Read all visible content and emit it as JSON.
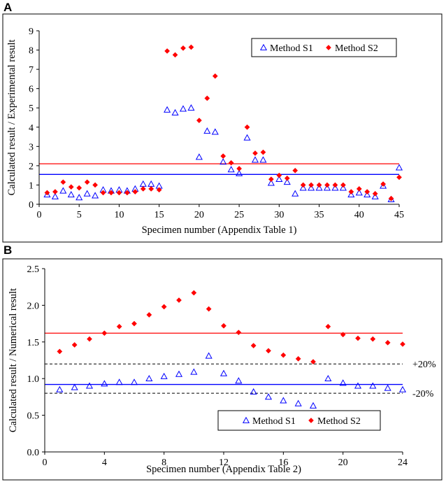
{
  "chart_data": [
    {
      "type": "scatter",
      "panel_label": "A",
      "xlabel": "Specimen number (Appendix Table 1)",
      "ylabel": "Calculated result / Experimental result",
      "xlim": [
        0,
        45
      ],
      "ylim": [
        0,
        9
      ],
      "xticks": [
        0,
        5,
        10,
        15,
        20,
        25,
        30,
        35,
        40,
        45
      ],
      "yticks": [
        0,
        1,
        2,
        3,
        4,
        5,
        6,
        7,
        8,
        9
      ],
      "legend_position": "top-right",
      "series": [
        {
          "name": "Method S1",
          "marker": "triangle-open",
          "color": "#0000ff",
          "x": [
            1,
            2,
            3,
            4,
            5,
            6,
            7,
            8,
            9,
            10,
            11,
            12,
            13,
            14,
            15,
            16,
            17,
            18,
            19,
            20,
            21,
            22,
            23,
            24,
            25,
            26,
            27,
            28,
            29,
            30,
            31,
            32,
            33,
            34,
            35,
            36,
            37,
            38,
            39,
            40,
            41,
            42,
            43,
            44,
            45
          ],
          "y": [
            0.5,
            0.4,
            0.7,
            0.5,
            0.35,
            0.55,
            0.45,
            0.75,
            0.7,
            0.75,
            0.7,
            0.8,
            1.05,
            1.05,
            0.95,
            4.9,
            4.75,
            4.95,
            5.0,
            2.45,
            3.8,
            3.75,
            2.2,
            1.8,
            1.6,
            3.45,
            2.3,
            2.3,
            1.1,
            1.3,
            1.15,
            0.55,
            0.85,
            0.85,
            0.85,
            0.85,
            0.85,
            0.85,
            0.5,
            0.6,
            0.5,
            0.4,
            0.95,
            0.25,
            1.9
          ],
          "mean_line": 1.55,
          "mean_line_color": "#0000ff"
        },
        {
          "name": "Method S2",
          "marker": "diamond-filled",
          "color": "#ff0000",
          "x": [
            1,
            2,
            3,
            4,
            5,
            6,
            7,
            8,
            9,
            10,
            11,
            12,
            13,
            14,
            15,
            16,
            17,
            18,
            19,
            20,
            21,
            22,
            23,
            24,
            25,
            26,
            27,
            28,
            29,
            30,
            31,
            32,
            33,
            34,
            35,
            36,
            37,
            38,
            39,
            40,
            41,
            42,
            43,
            44,
            45
          ],
          "y": [
            0.6,
            0.65,
            1.15,
            0.9,
            0.85,
            1.15,
            1.0,
            0.6,
            0.6,
            0.6,
            0.6,
            0.65,
            0.8,
            0.8,
            0.75,
            7.95,
            7.75,
            8.1,
            8.15,
            4.35,
            5.5,
            6.65,
            2.5,
            2.15,
            1.85,
            4.0,
            2.65,
            2.7,
            1.3,
            1.5,
            1.35,
            1.75,
            1.0,
            1.0,
            1.0,
            1.0,
            1.0,
            1.0,
            0.65,
            0.8,
            0.65,
            0.55,
            1.05,
            0.3,
            1.4
          ],
          "mean_line": 2.1,
          "mean_line_color": "#ff0000"
        }
      ]
    },
    {
      "type": "scatter",
      "panel_label": "B",
      "xlabel": "Specimen number (Appendix Table 2)",
      "ylabel": "Calculated result / Numerical result",
      "xlim": [
        0,
        24
      ],
      "ylim": [
        0,
        2.5
      ],
      "xticks": [
        0,
        4,
        8,
        12,
        16,
        20,
        24
      ],
      "yticks": [
        "0.0",
        "0.5",
        "1.0",
        "1.5",
        "2.0",
        "2.5"
      ],
      "legend_position": "bottom-right",
      "series": [
        {
          "name": "Method S1",
          "marker": "triangle-open",
          "color": "#0000ff",
          "x": [
            1,
            2,
            3,
            4,
            5,
            6,
            7,
            8,
            9,
            10,
            11,
            12,
            13,
            14,
            15,
            16,
            17,
            18,
            19,
            20,
            21,
            22,
            23,
            24
          ],
          "y": [
            0.85,
            0.88,
            0.9,
            0.93,
            0.95,
            0.95,
            1.0,
            1.03,
            1.06,
            1.09,
            1.31,
            1.07,
            0.97,
            0.82,
            0.75,
            0.7,
            0.66,
            0.63,
            1.0,
            0.94,
            0.9,
            0.9,
            0.87,
            0.85
          ],
          "mean_line": 0.92,
          "mean_line_color": "#0000ff"
        },
        {
          "name": "Method S2",
          "marker": "diamond-filled",
          "color": "#ff0000",
          "x": [
            1,
            2,
            3,
            4,
            5,
            6,
            7,
            8,
            9,
            10,
            11,
            12,
            13,
            14,
            15,
            16,
            17,
            18,
            19,
            20,
            21,
            22,
            23,
            24
          ],
          "y": [
            1.37,
            1.46,
            1.54,
            1.62,
            1.71,
            1.75,
            1.87,
            1.98,
            2.07,
            2.17,
            1.95,
            1.72,
            1.63,
            1.45,
            1.38,
            1.32,
            1.27,
            1.23,
            1.71,
            1.6,
            1.55,
            1.54,
            1.49,
            1.47
          ],
          "mean_line": 1.62,
          "mean_line_color": "#ff0000"
        }
      ],
      "reference_lines": [
        {
          "y": 1.2,
          "label": "+20%",
          "style": "dashed"
        },
        {
          "y": 0.8,
          "label": "-20%",
          "style": "dashed"
        }
      ]
    }
  ]
}
